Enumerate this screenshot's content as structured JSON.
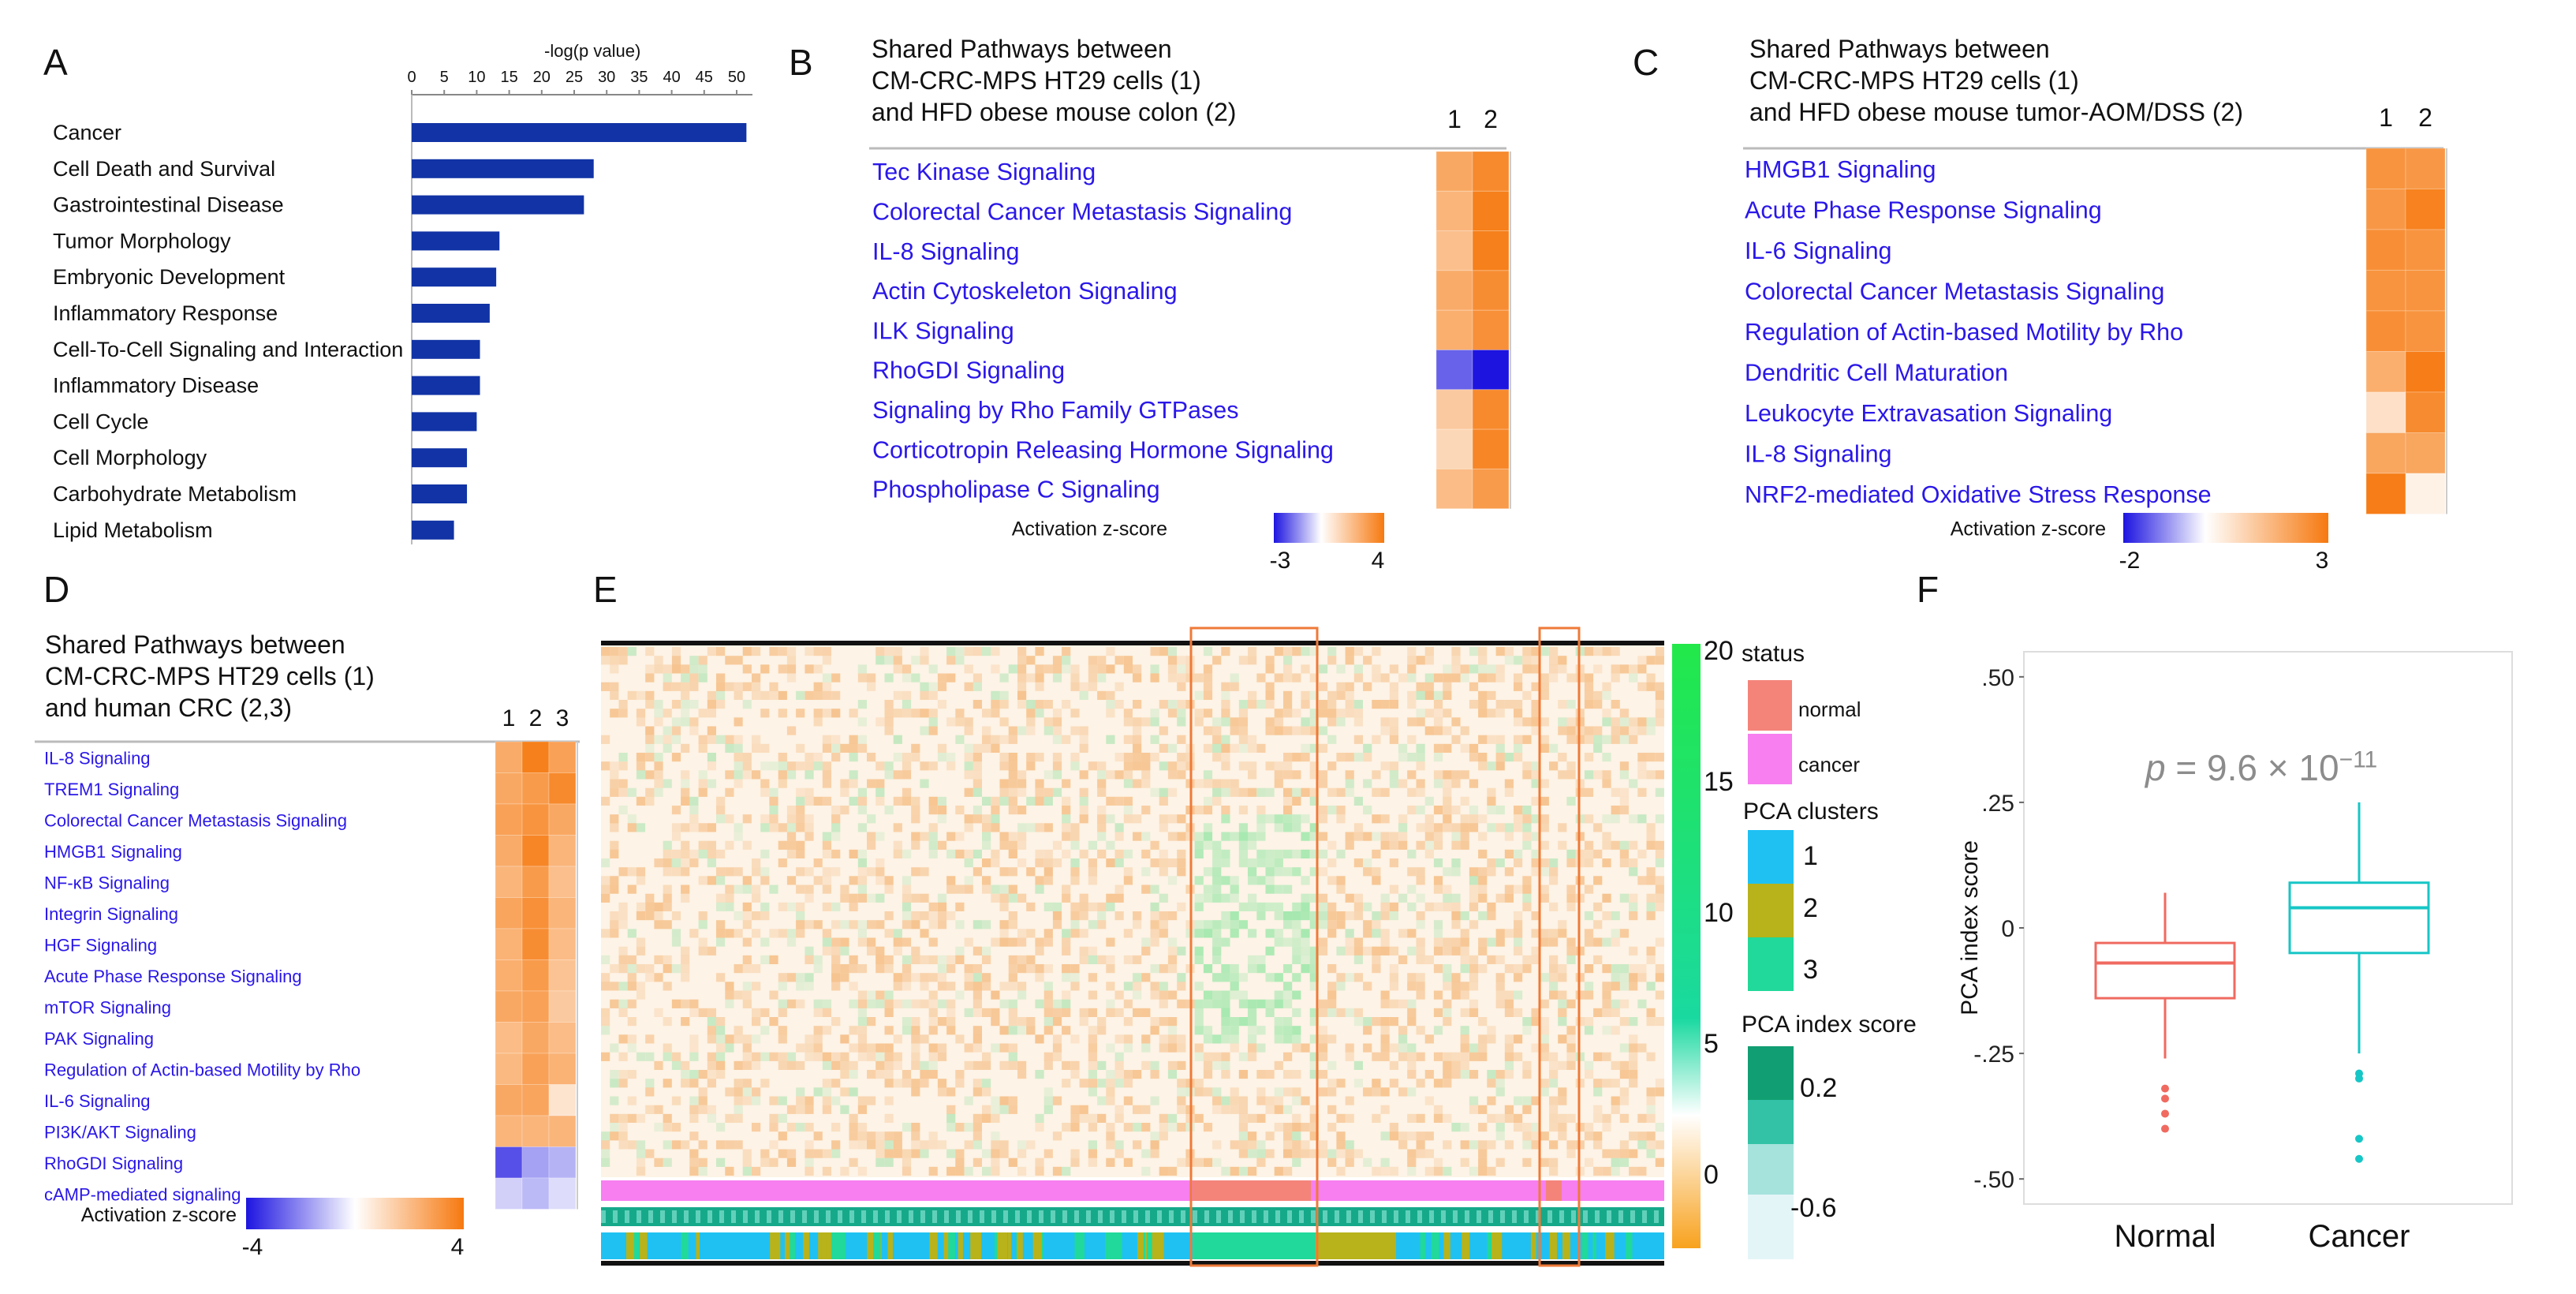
{
  "panels": {
    "A": "A",
    "B": "B",
    "C": "C",
    "D": "D",
    "E": "E",
    "F": "F"
  },
  "colors": {
    "bar": "#1133a5",
    "path_text": "#2a17e8",
    "orange": "#f6790f",
    "blue": "#1d14e0",
    "heat_orange": "#f08a33",
    "heat_green": "#22e84a",
    "normal": "#f4847a",
    "cancer_status": "#f77ff0",
    "cluster1": "#1fc1f2",
    "cluster2": "#b8b21b",
    "cluster3": "#21d99a",
    "box_normal": "#f06a60",
    "box_cancer": "#17c6c6",
    "highlight": "#ef7a38"
  },
  "chart_data": [
    {
      "id": "A",
      "type": "bar",
      "orientation": "horizontal",
      "xlabel": "-log(p value)",
      "ticks": [
        "0",
        "5",
        "10",
        "15",
        "20",
        "25",
        "30",
        "35",
        "40",
        "45",
        "50"
      ],
      "xlim": [
        0,
        50
      ],
      "categories": [
        "Cancer",
        "Cell Death and Survival",
        "Gastrointestinal Disease",
        "Tumor Morphology",
        "Embryonic Development",
        "Inflammatory Response",
        "Cell-To-Cell Signaling and Interaction",
        "Inflammatory Disease",
        "Cell Cycle",
        "Cell Morphology",
        "Carbohydrate Metabolism",
        "Lipid Metabolism"
      ],
      "values": [
        51.5,
        28,
        26.5,
        13.5,
        13,
        12,
        10.5,
        10.5,
        10,
        8.5,
        8.5,
        6.5
      ]
    },
    {
      "id": "B",
      "type": "heatmap",
      "title": [
        "Shared Pathways between",
        "CM-CRC-MPS HT29 cells (1)",
        "and HFD obese mouse colon (2)"
      ],
      "columns": [
        "1",
        "2"
      ],
      "rows": [
        "Tec Kinase Signaling",
        "Colorectal Cancer Metastasis Signaling",
        "IL-8 Signaling",
        "Actin Cytoskeleton Signaling",
        "ILK Signaling",
        "RhoGDI Signaling",
        "Signaling by Rho Family GTPases",
        "Corticotropin Releasing Hormone Signaling",
        "Phospholipase C Signaling"
      ],
      "values": [
        [
          2.6,
          3.5
        ],
        [
          2.2,
          3.8
        ],
        [
          1.9,
          3.8
        ],
        [
          2.5,
          3.4
        ],
        [
          2.4,
          3.3
        ],
        [
          -2.0,
          -3.0
        ],
        [
          1.6,
          3.5
        ],
        [
          1.2,
          3.6
        ],
        [
          2.0,
          3.0
        ]
      ],
      "scale_label": "Activation z-score",
      "scale_ticks": [
        "-3",
        "4"
      ],
      "zlim": [
        -3,
        4
      ]
    },
    {
      "id": "C",
      "type": "heatmap",
      "title": [
        "Shared Pathways between",
        "CM-CRC-MPS HT29 cells (1)",
        "and HFD obese mouse tumor-AOM/DSS (2)"
      ],
      "columns": [
        "1",
        "2"
      ],
      "rows": [
        "HMGB1 Signaling",
        "Acute Phase Response Signaling",
        "IL-6 Signaling",
        "Colorectal Cancer Metastasis Signaling",
        "Regulation of Actin-based Motility by Rho",
        "Dendritic Cell Maturation",
        "Leukocyte Extravasation Signaling",
        "IL-8 Signaling",
        "NRF2-mediated Oxidative Stress Response"
      ],
      "values": [
        [
          2.4,
          2.3
        ],
        [
          2.3,
          2.8
        ],
        [
          2.5,
          2.4
        ],
        [
          2.4,
          2.4
        ],
        [
          2.5,
          2.4
        ],
        [
          1.8,
          2.9
        ],
        [
          0.7,
          2.6
        ],
        [
          2.0,
          2.0
        ],
        [
          2.9,
          0.3
        ]
      ],
      "scale_label": "Activation z-score",
      "scale_ticks": [
        "-2",
        "3"
      ],
      "zlim": [
        -2,
        3
      ]
    },
    {
      "id": "D",
      "type": "heatmap",
      "title": [
        "Shared Pathways between",
        "CM-CRC-MPS HT29 cells (1)",
        "and human CRC (2,3)"
      ],
      "columns": [
        "1",
        "2",
        "3"
      ],
      "rows": [
        "IL-8 Signaling",
        "TREM1 Signaling",
        "Colorectal Cancer Metastasis Signaling",
        "HMGB1 Signaling",
        "NF-κB Signaling",
        "Integrin Signaling",
        "HGF Signaling",
        "Acute Phase Response Signaling",
        "mTOR Signaling",
        "PAK Signaling",
        "Regulation of Actin-based Motility by Rho",
        "IL-6 Signaling",
        "PI3K/AKT Signaling",
        "RhoGDI Signaling",
        "cAMP-mediated signaling"
      ],
      "values": [
        [
          2.5,
          3.8,
          2.8
        ],
        [
          2.6,
          3.0,
          3.5
        ],
        [
          2.8,
          3.2,
          2.6
        ],
        [
          2.5,
          3.6,
          2.2
        ],
        [
          2.2,
          3.0,
          1.9
        ],
        [
          2.7,
          3.3,
          2.2
        ],
        [
          2.3,
          3.4,
          2.0
        ],
        [
          2.4,
          3.0,
          1.8
        ],
        [
          2.6,
          2.8,
          1.6
        ],
        [
          2.0,
          2.6,
          2.0
        ],
        [
          2.1,
          2.8,
          2.3
        ],
        [
          2.6,
          2.7,
          0.8
        ],
        [
          2.2,
          2.2,
          2.2
        ],
        [
          -3.0,
          -1.6,
          -1.3
        ],
        [
          -0.8,
          -1.2,
          -0.6
        ]
      ],
      "scale_label": "Activation z-score",
      "scale_ticks": [
        "-4",
        "4"
      ],
      "zlim": [
        -4,
        4
      ]
    },
    {
      "id": "E",
      "type": "heatmap",
      "colorbar_ticks": [
        "20",
        "15",
        "10",
        "5",
        "0"
      ],
      "zlim": [
        0,
        20
      ],
      "legend": {
        "status_title": "status",
        "status": [
          "normal",
          "cancer"
        ],
        "clusters_title": "PCA clusters",
        "clusters": [
          "1",
          "2",
          "3"
        ],
        "index_title": "PCA index score",
        "index_ticks": [
          "0.2",
          "-0.6"
        ]
      }
    },
    {
      "id": "F",
      "type": "box",
      "ylabel": "PCA index score",
      "ylim": [
        -0.55,
        0.55
      ],
      "yticks": [
        ".50",
        ".25",
        "0",
        "-.25",
        "-.50"
      ],
      "ytick_values": [
        0.5,
        0.25,
        0,
        -0.25,
        -0.5
      ],
      "categories": [
        "Normal",
        "Cancer"
      ],
      "annotation": {
        "p": "p",
        "eq": " = 9.6 × 10",
        "exp": "−11"
      },
      "boxes": [
        {
          "name": "Normal",
          "q1": -0.14,
          "median": -0.07,
          "q3": -0.03,
          "whisker_low": -0.26,
          "whisker_high": 0.07,
          "outliers": [
            -0.32,
            -0.34,
            -0.37,
            -0.4
          ]
        },
        {
          "name": "Cancer",
          "q1": -0.05,
          "median": 0.04,
          "q3": 0.09,
          "whisker_low": -0.25,
          "whisker_high": 0.25,
          "outliers": [
            -0.29,
            -0.3,
            -0.42,
            -0.46
          ]
        }
      ]
    }
  ]
}
